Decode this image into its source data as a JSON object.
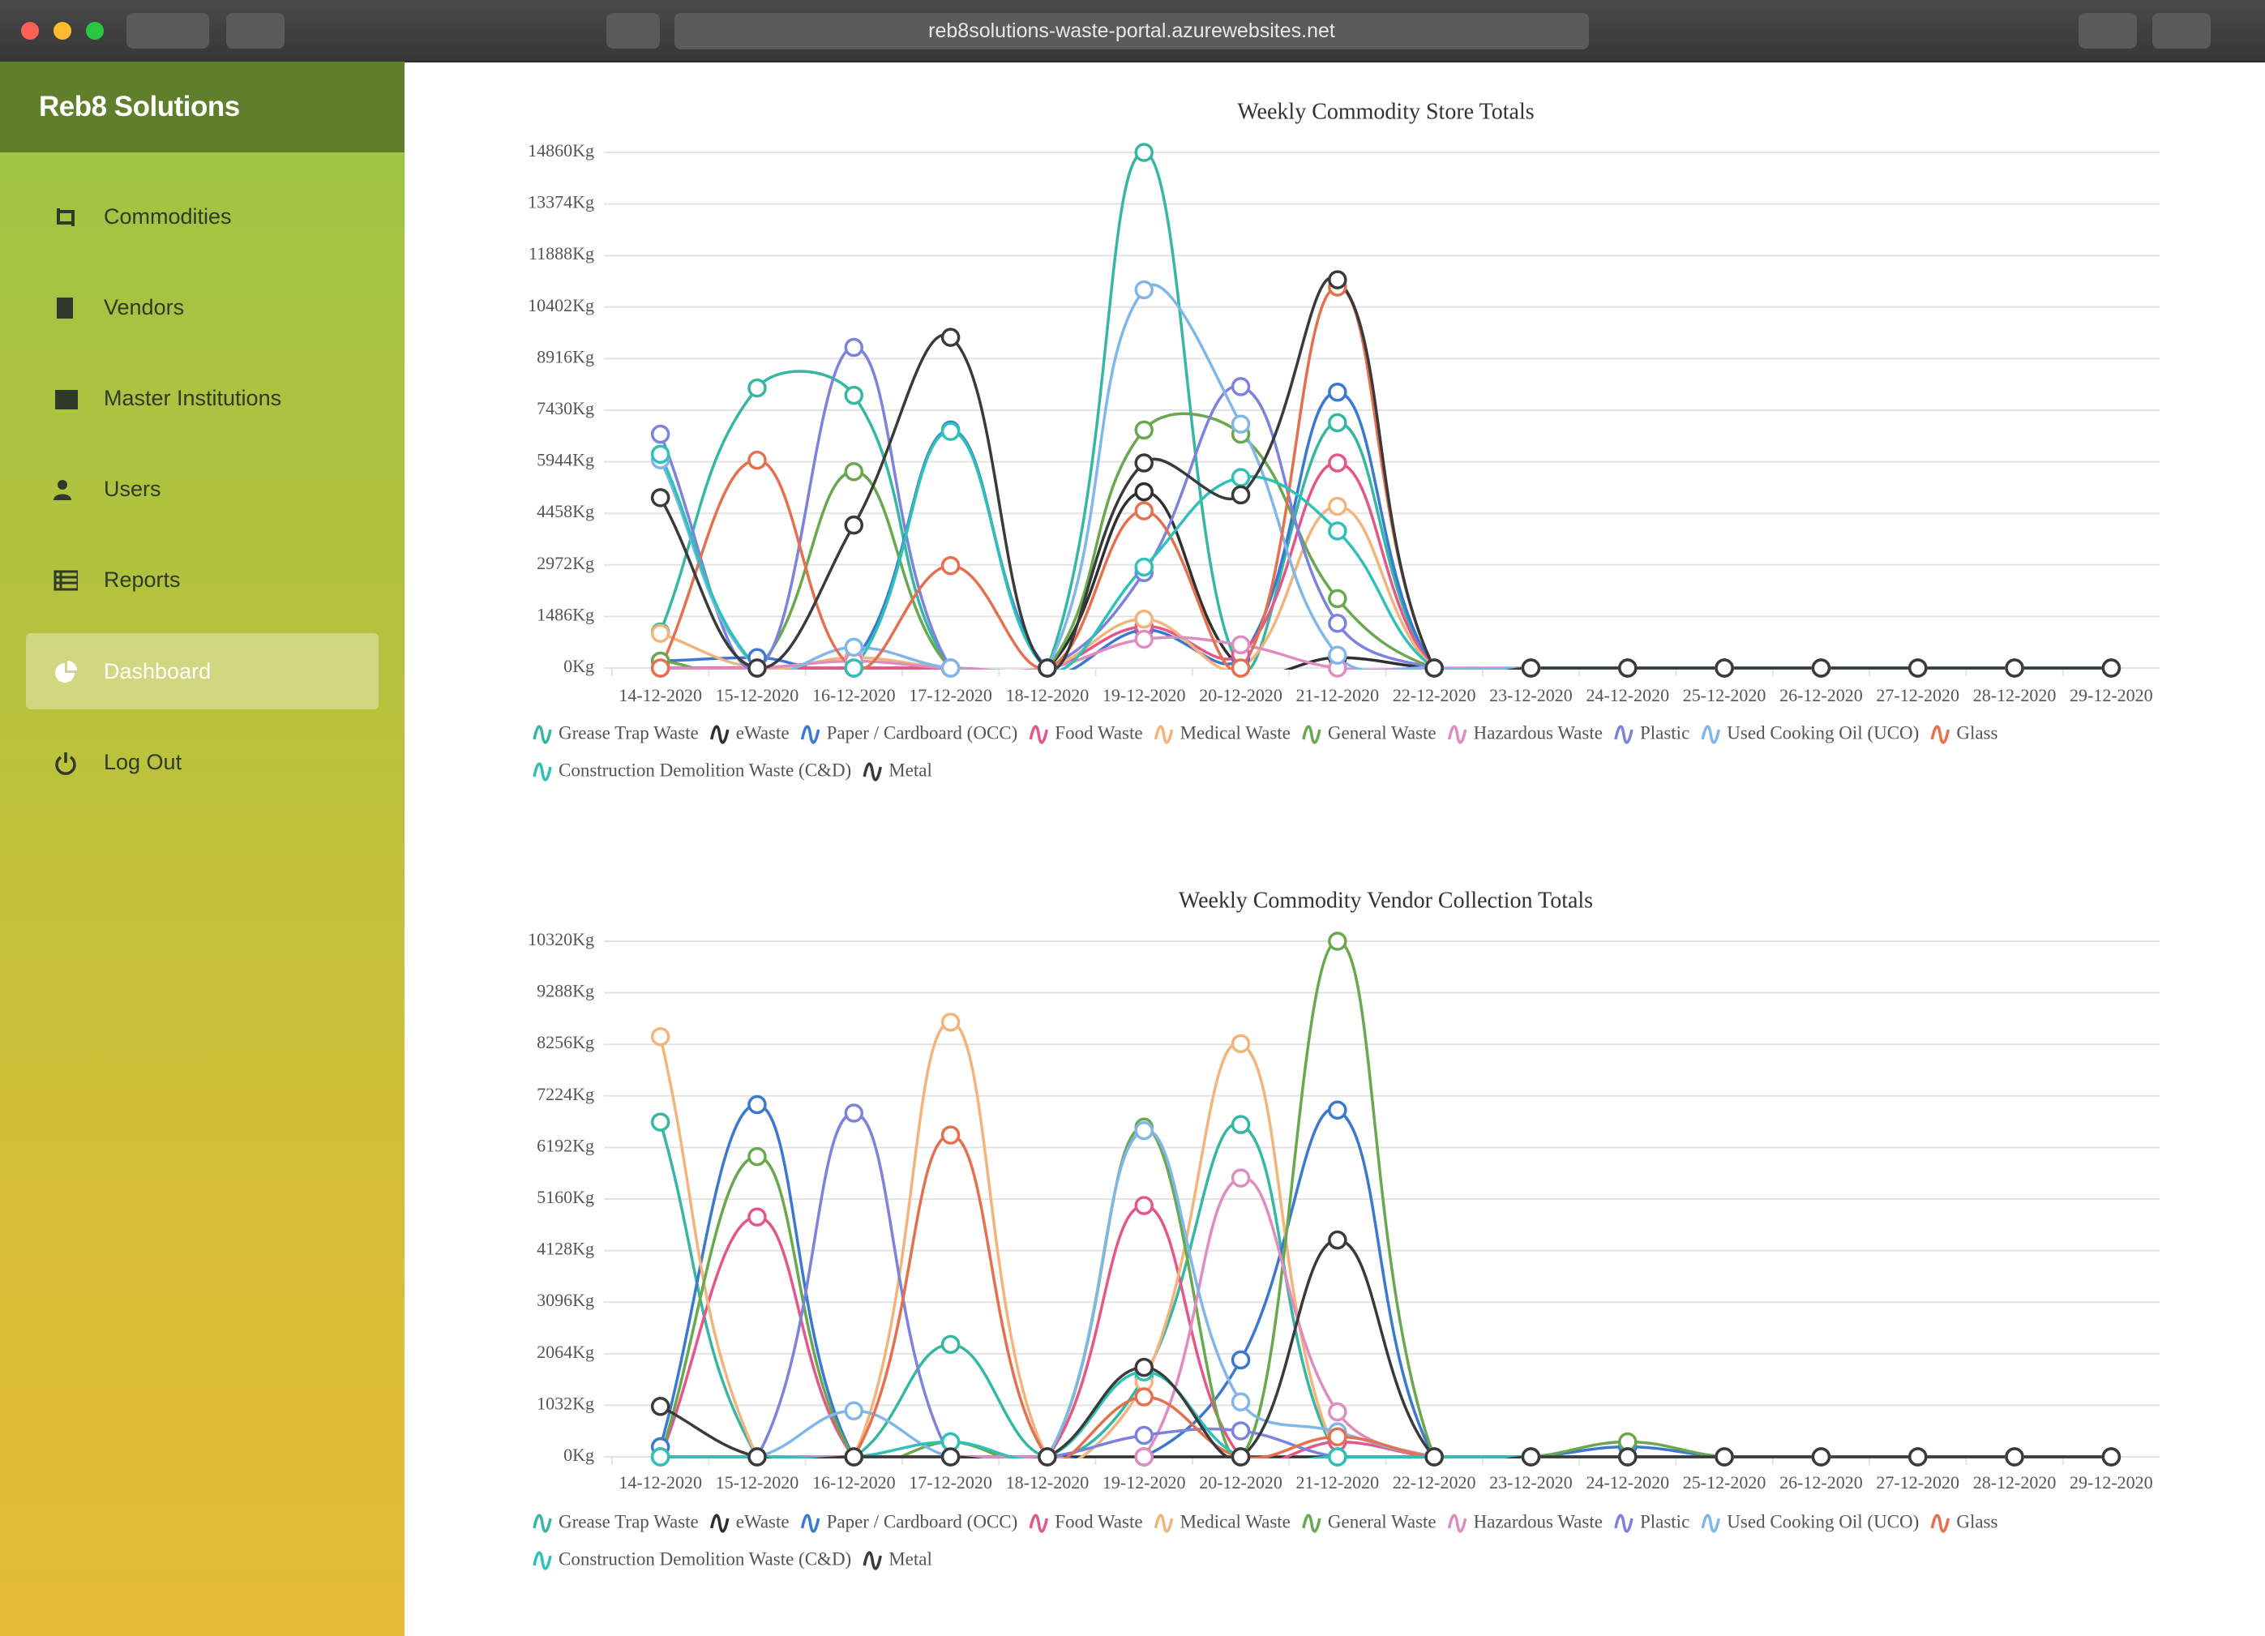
{
  "browser": {
    "url": "reb8solutions-waste-portal.azurewebsites.net"
  },
  "sidebar": {
    "brand": "Reb8 Solutions",
    "items": [
      "Commodities",
      "Vendors",
      "Master Institutions",
      "Users",
      "Reports",
      "Dashboard",
      "Log Out"
    ]
  },
  "chart_data": [
    {
      "type": "line",
      "title": "Weekly Commodity Store Totals",
      "categories": [
        "14-12-2020",
        "15-12-2020",
        "16-12-2020",
        "17-12-2020",
        "18-12-2020",
        "19-12-2020",
        "20-12-2020",
        "21-12-2020",
        "22-12-2020",
        "23-12-2020",
        "24-12-2020",
        "25-12-2020",
        "26-12-2020",
        "27-12-2020",
        "28-12-2020",
        "29-12-2020"
      ],
      "series": [
        {
          "name": "Grease Trap Waste",
          "color": "#35b7a4",
          "values": [
            1040,
            8070,
            7860,
            0,
            0,
            14860,
            0,
            7070,
            0,
            0,
            0,
            0,
            0,
            0,
            0,
            0
          ]
        },
        {
          "name": "eWaste",
          "color": "#2f2f2f",
          "values": [
            0,
            0,
            0,
            0,
            0,
            5080,
            0,
            300,
            0,
            0,
            0,
            0,
            0,
            0,
            0,
            0
          ]
        },
        {
          "name": "Paper / Cardboard (OCC)",
          "color": "#3b78cf",
          "values": [
            200,
            300,
            200,
            6860,
            0,
            1100,
            300,
            7950,
            0,
            0,
            0,
            0,
            0,
            0,
            0,
            0
          ]
        },
        {
          "name": "Food Waste",
          "color": "#e4578b",
          "values": [
            0,
            0,
            0,
            0,
            0,
            1200,
            400,
            5910,
            0,
            0,
            0,
            0,
            0,
            0,
            0,
            0
          ]
        },
        {
          "name": "Medical Waste",
          "color": "#f3b47c",
          "values": [
            1000,
            0,
            300,
            0,
            0,
            1410,
            0,
            4660,
            0,
            0,
            0,
            0,
            0,
            0,
            0,
            0
          ]
        },
        {
          "name": "General Waste",
          "color": "#6aa84f",
          "values": [
            200,
            0,
            5660,
            0,
            0,
            6860,
            6740,
            2000,
            0,
            0,
            0,
            0,
            0,
            0,
            0,
            0
          ]
        },
        {
          "name": "Hazardous Waste",
          "color": "#df8cc2",
          "values": [
            0,
            0,
            200,
            0,
            0,
            830,
            670,
            0,
            0,
            0,
            0,
            0,
            0,
            0,
            0,
            0
          ]
        },
        {
          "name": "Plastic",
          "color": "#7d82dc",
          "values": [
            6740,
            0,
            9240,
            0,
            0,
            2750,
            8110,
            1290,
            0,
            0,
            0,
            0,
            0,
            0,
            0,
            0
          ]
        },
        {
          "name": "Used Cooking Oil (UCO)",
          "color": "#80b7e8",
          "values": [
            6000,
            0,
            600,
            0,
            0,
            10900,
            7030,
            370,
            0,
            0,
            0,
            0,
            0,
            0,
            0,
            0
          ]
        },
        {
          "name": "Glass",
          "color": "#e5704f",
          "values": [
            0,
            5990,
            0,
            2950,
            0,
            4530,
            0,
            10980,
            0,
            0,
            0,
            0,
            0,
            0,
            0,
            0
          ]
        },
        {
          "name": "Construction Demolition Waste (C&D)",
          "color": "#2fc0b8",
          "values": [
            6160,
            0,
            0,
            6820,
            0,
            2910,
            5490,
            3950,
            0,
            0,
            0,
            0,
            0,
            0,
            0,
            0
          ]
        },
        {
          "name": "Metal",
          "color": "#3a3a3a",
          "values": [
            4910,
            0,
            4120,
            9530,
            0,
            5910,
            4990,
            11190,
            0,
            0,
            0,
            0,
            0,
            0,
            0,
            0
          ]
        }
      ],
      "ylim": [
        0,
        14860
      ],
      "yticks": [
        {
          "value": 0,
          "label": "0Kg"
        },
        {
          "value": 1486,
          "label": "1486Kg"
        },
        {
          "value": 2972,
          "label": "2972Kg"
        },
        {
          "value": 4458,
          "label": "4458Kg"
        },
        {
          "value": 5944,
          "label": "5944Kg"
        },
        {
          "value": 7430,
          "label": "7430Kg"
        },
        {
          "value": 8916,
          "label": "8916Kg"
        },
        {
          "value": 10402,
          "label": "10402Kg"
        },
        {
          "value": 11888,
          "label": "11888Kg"
        },
        {
          "value": 13374,
          "label": "13374Kg"
        },
        {
          "value": 14860,
          "label": "14860Kg"
        }
      ],
      "grid": true,
      "legend": "bottom"
    },
    {
      "type": "line",
      "title": "Weekly Commodity Vendor Collection Totals",
      "categories": [
        "14-12-2020",
        "15-12-2020",
        "16-12-2020",
        "17-12-2020",
        "18-12-2020",
        "19-12-2020",
        "20-12-2020",
        "21-12-2020",
        "22-12-2020",
        "23-12-2020",
        "24-12-2020",
        "25-12-2020",
        "26-12-2020",
        "27-12-2020",
        "28-12-2020",
        "29-12-2020"
      ],
      "series": [
        {
          "name": "Grease Trap Waste",
          "color": "#35b7a4",
          "values": [
            6700,
            0,
            0,
            2250,
            0,
            1600,
            6650,
            0,
            0,
            0,
            0,
            0,
            0,
            0,
            0,
            0
          ]
        },
        {
          "name": "eWaste",
          "color": "#2f2f2f",
          "values": [
            0,
            0,
            0,
            0,
            0,
            0,
            0,
            0,
            0,
            0,
            0,
            0,
            0,
            0,
            0,
            0
          ]
        },
        {
          "name": "Paper / Cardboard (OCC)",
          "color": "#3b78cf",
          "values": [
            200,
            7050,
            0,
            0,
            0,
            0,
            1940,
            6940,
            0,
            0,
            200,
            0,
            0,
            0,
            0,
            0
          ]
        },
        {
          "name": "Food Waste",
          "color": "#e4578b",
          "values": [
            0,
            4800,
            0,
            0,
            0,
            5030,
            0,
            300,
            0,
            0,
            0,
            0,
            0,
            0,
            0,
            0
          ]
        },
        {
          "name": "Medical Waste",
          "color": "#f3b47c",
          "values": [
            8410,
            0,
            0,
            8700,
            0,
            1500,
            8270,
            0,
            0,
            0,
            0,
            0,
            0,
            0,
            0,
            0
          ]
        },
        {
          "name": "General Waste",
          "color": "#6aa84f",
          "values": [
            0,
            6010,
            0,
            300,
            0,
            6600,
            0,
            10320,
            0,
            0,
            300,
            0,
            0,
            0,
            0,
            0
          ]
        },
        {
          "name": "Hazardous Waste",
          "color": "#df8cc2",
          "values": [
            0,
            0,
            0,
            0,
            0,
            0,
            5580,
            900,
            0,
            0,
            0,
            0,
            0,
            0,
            0,
            0
          ]
        },
        {
          "name": "Plastic",
          "color": "#7d82dc",
          "values": [
            0,
            0,
            6880,
            0,
            0,
            430,
            520,
            0,
            0,
            0,
            0,
            0,
            0,
            0,
            0,
            0
          ]
        },
        {
          "name": "Used Cooking Oil (UCO)",
          "color": "#80b7e8",
          "values": [
            0,
            0,
            920,
            0,
            0,
            6530,
            1100,
            500,
            0,
            0,
            0,
            0,
            0,
            0,
            0,
            0
          ]
        },
        {
          "name": "Glass",
          "color": "#e5704f",
          "values": [
            0,
            0,
            0,
            6440,
            0,
            1200,
            0,
            400,
            0,
            0,
            0,
            0,
            0,
            0,
            0,
            0
          ]
        },
        {
          "name": "Construction Demolition Waste (C&D)",
          "color": "#2fc0b8",
          "values": [
            0,
            0,
            0,
            300,
            0,
            1700,
            0,
            0,
            0,
            0,
            0,
            0,
            0,
            0,
            0,
            0
          ]
        },
        {
          "name": "Metal",
          "color": "#3a3a3a",
          "values": [
            1010,
            0,
            0,
            0,
            0,
            1790,
            0,
            4340,
            0,
            0,
            0,
            0,
            0,
            0,
            0,
            0
          ]
        }
      ],
      "ylim": [
        0,
        10320
      ],
      "yticks": [
        {
          "value": 0,
          "label": "0Kg"
        },
        {
          "value": 1032,
          "label": "1032Kg"
        },
        {
          "value": 2064,
          "label": "2064Kg"
        },
        {
          "value": 3096,
          "label": "3096Kg"
        },
        {
          "value": 4128,
          "label": "4128Kg"
        },
        {
          "value": 5160,
          "label": "5160Kg"
        },
        {
          "value": 6192,
          "label": "6192Kg"
        },
        {
          "value": 7224,
          "label": "7224Kg"
        },
        {
          "value": 8256,
          "label": "8256Kg"
        },
        {
          "value": 9288,
          "label": "9288Kg"
        },
        {
          "value": 10320,
          "label": "10320Kg"
        }
      ],
      "grid": true,
      "legend": "bottom"
    }
  ]
}
